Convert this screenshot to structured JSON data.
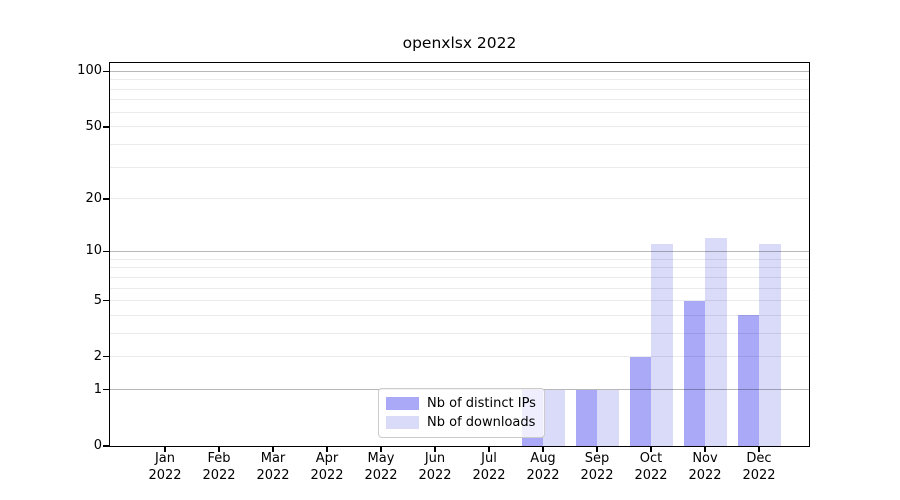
{
  "title": "openxlsx 2022",
  "legend": {
    "items": [
      {
        "label": "Nb of distinct IPs",
        "color": "#a9a9f7"
      },
      {
        "label": "Nb of downloads",
        "color": "#dadaf9"
      }
    ]
  },
  "chart_data": {
    "type": "bar",
    "title": "openxlsx 2022",
    "categories": [
      "Jan",
      "Feb",
      "Mar",
      "Apr",
      "May",
      "Jun",
      "Jul",
      "Aug",
      "Sep",
      "Oct",
      "Nov",
      "Dec"
    ],
    "year_label": "2022",
    "series": [
      {
        "name": "Nb of distinct IPs",
        "color": "#a9a9f7",
        "values": [
          0,
          0,
          0,
          0,
          0,
          0,
          0,
          1,
          1,
          2,
          5,
          4
        ]
      },
      {
        "name": "Nb of downloads",
        "color": "#dadaf9",
        "values": [
          0,
          0,
          0,
          0,
          0,
          0,
          0,
          1,
          1,
          11,
          12,
          11
        ]
      }
    ],
    "xlabel": "",
    "ylabel": "",
    "yscale": "log10(1+value)",
    "ylim": [
      0,
      111
    ],
    "yticks": [
      0,
      1,
      2,
      5,
      10,
      20,
      50,
      100
    ],
    "gridlines": {
      "major": [
        1,
        10,
        100
      ],
      "minor": [
        2,
        3,
        4,
        5,
        6,
        7,
        8,
        9,
        20,
        30,
        40,
        50,
        60,
        70,
        80,
        90
      ]
    },
    "grid": "horizontal",
    "legend_position": "inside-bottom-center"
  }
}
